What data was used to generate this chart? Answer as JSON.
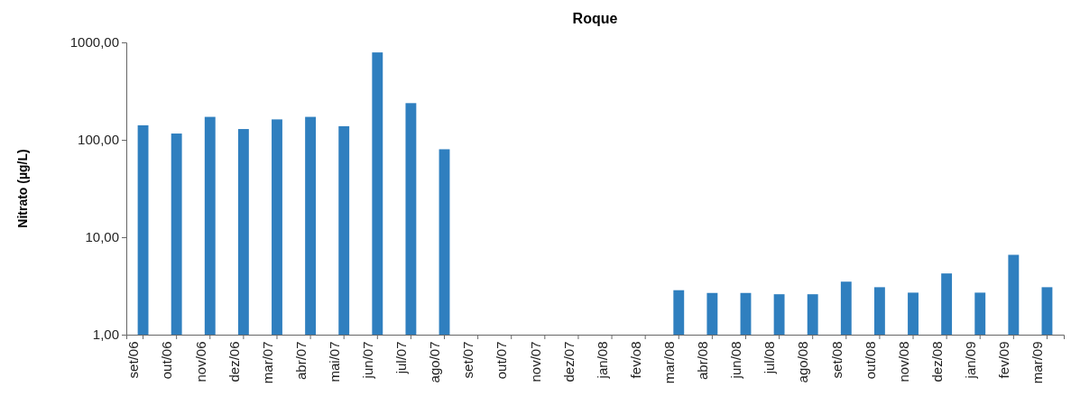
{
  "chart_data": {
    "type": "bar",
    "title": "Roque",
    "ylabel": "Nitrato (µg/L)",
    "categories": [
      "set/06",
      "out/06",
      "nov/06",
      "dez/06",
      "mar/07",
      "abr/07",
      "mai/07",
      "jun/07",
      "jul/07",
      "ago/07",
      "set/07",
      "out/07",
      "nov/07",
      "dez/07",
      "jan/08",
      "fev/o8",
      "mar/08",
      "abr/08",
      "jun/08",
      "jul/08",
      "ago/08",
      "set/08",
      "out/08",
      "nov/08",
      "dez/08",
      "jan/09",
      "fev/09",
      "mar/09"
    ],
    "values": [
      141,
      116,
      172,
      129,
      162,
      172,
      138,
      789,
      238,
      80,
      null,
      null,
      null,
      null,
      null,
      null,
      2.86,
      2.68,
      2.68,
      2.6,
      2.6,
      3.5,
      3.07,
      2.7,
      4.25,
      2.7,
      6.6,
      3.07
    ],
    "color": "#2f7fbf",
    "log": true,
    "ylim": [
      1,
      1000
    ],
    "yticks": [
      {
        "value": 1,
        "label": "1,00"
      },
      {
        "value": 10,
        "label": "10,00"
      },
      {
        "value": 100,
        "label": "100,00"
      },
      {
        "value": 1000,
        "label": "1000,00"
      }
    ],
    "grid": false
  }
}
